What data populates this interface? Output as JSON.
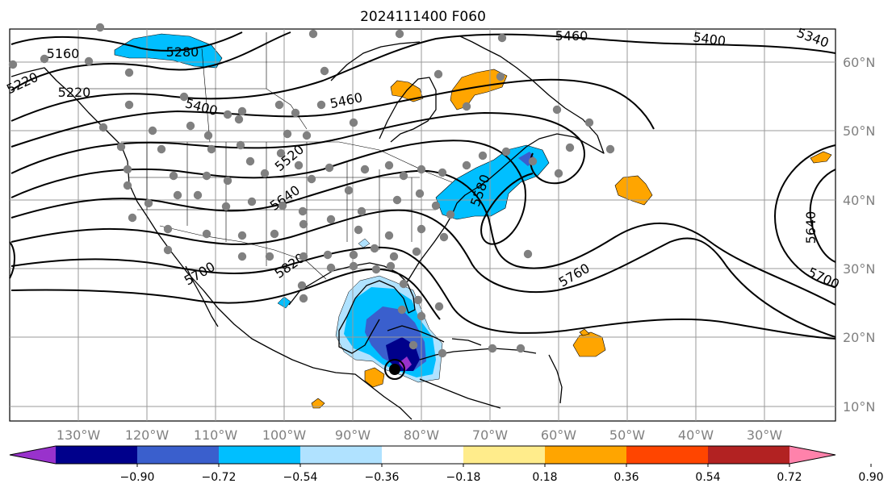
{
  "chart_data": {
    "type": "map",
    "title": "2024111400 F060",
    "lon_ticks": [
      "130°W",
      "120°W",
      "110°W",
      "100°W",
      "90°W",
      "80°W",
      "70°W",
      "60°W",
      "50°W",
      "40°W",
      "30°W"
    ],
    "lat_ticks": [
      "60°N",
      "50°N",
      "40°N",
      "30°N",
      "20°N",
      "10°N"
    ],
    "contour_labels": [
      "5160",
      "5220",
      "5280",
      "5340",
      "5400",
      "5460",
      "5520",
      "5580",
      "5640",
      "5700",
      "5760",
      "5820"
    ],
    "colorbar": {
      "ticks": [
        "−0.90",
        "−0.72",
        "−0.54",
        "−0.36",
        "−0.18",
        "0.18",
        "0.36",
        "0.54",
        "0.72",
        "0.90"
      ],
      "colors": [
        "#9932cc",
        "#00008b",
        "#3a5fcd",
        "#00bfff",
        "#b0e2ff",
        "#ffffff",
        "#ffec8b",
        "#ffa500",
        "#ff4500",
        "#b22222",
        "#ff82ab"
      ],
      "extend": "both"
    },
    "grid": true
  }
}
